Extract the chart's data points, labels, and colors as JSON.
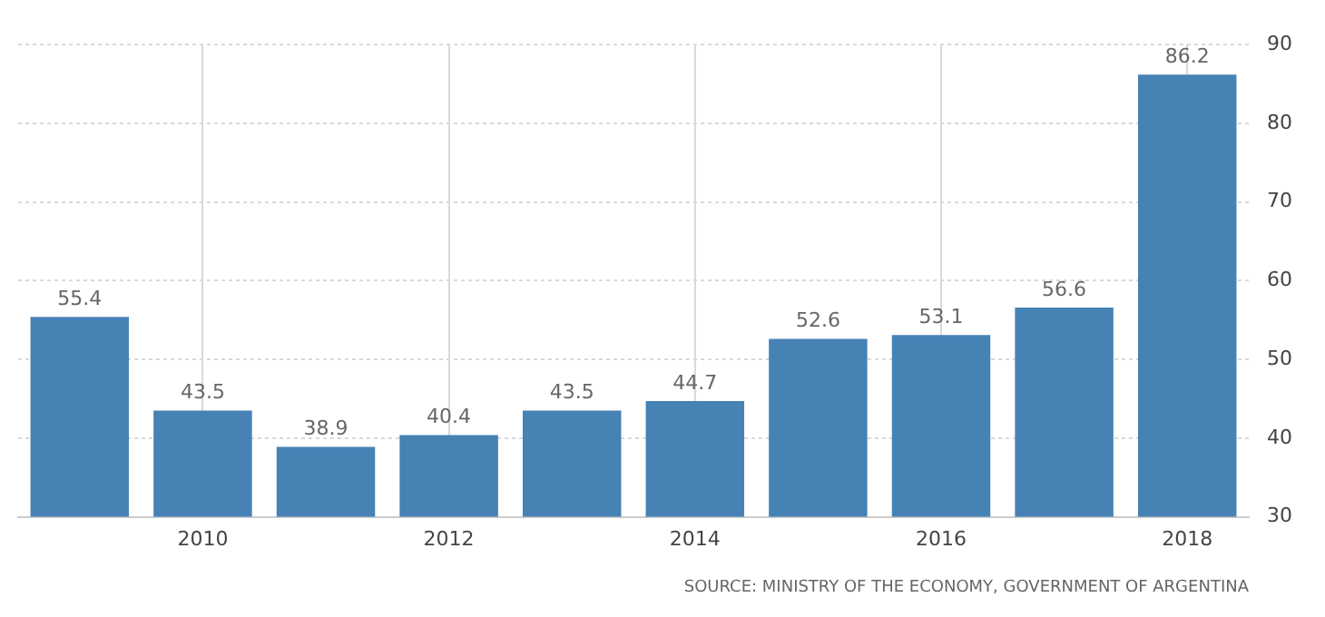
{
  "chart_data": {
    "type": "bar",
    "categories": [
      null,
      "2010",
      null,
      "2012",
      null,
      "2014",
      null,
      "2016",
      null,
      "2018"
    ],
    "values": [
      55.4,
      43.5,
      38.9,
      40.4,
      43.5,
      44.7,
      52.6,
      53.1,
      56.6,
      86.2
    ],
    "color": "#4682b4",
    "ylim": [
      30,
      90
    ],
    "yticks": [
      30,
      40,
      50,
      60,
      70,
      80,
      90
    ],
    "grid": true,
    "data_labels": true,
    "annotations": [
      "SOURCE: MINISTRY OF THE ECONOMY, GOVERNMENT OF ARGENTINA"
    ]
  }
}
